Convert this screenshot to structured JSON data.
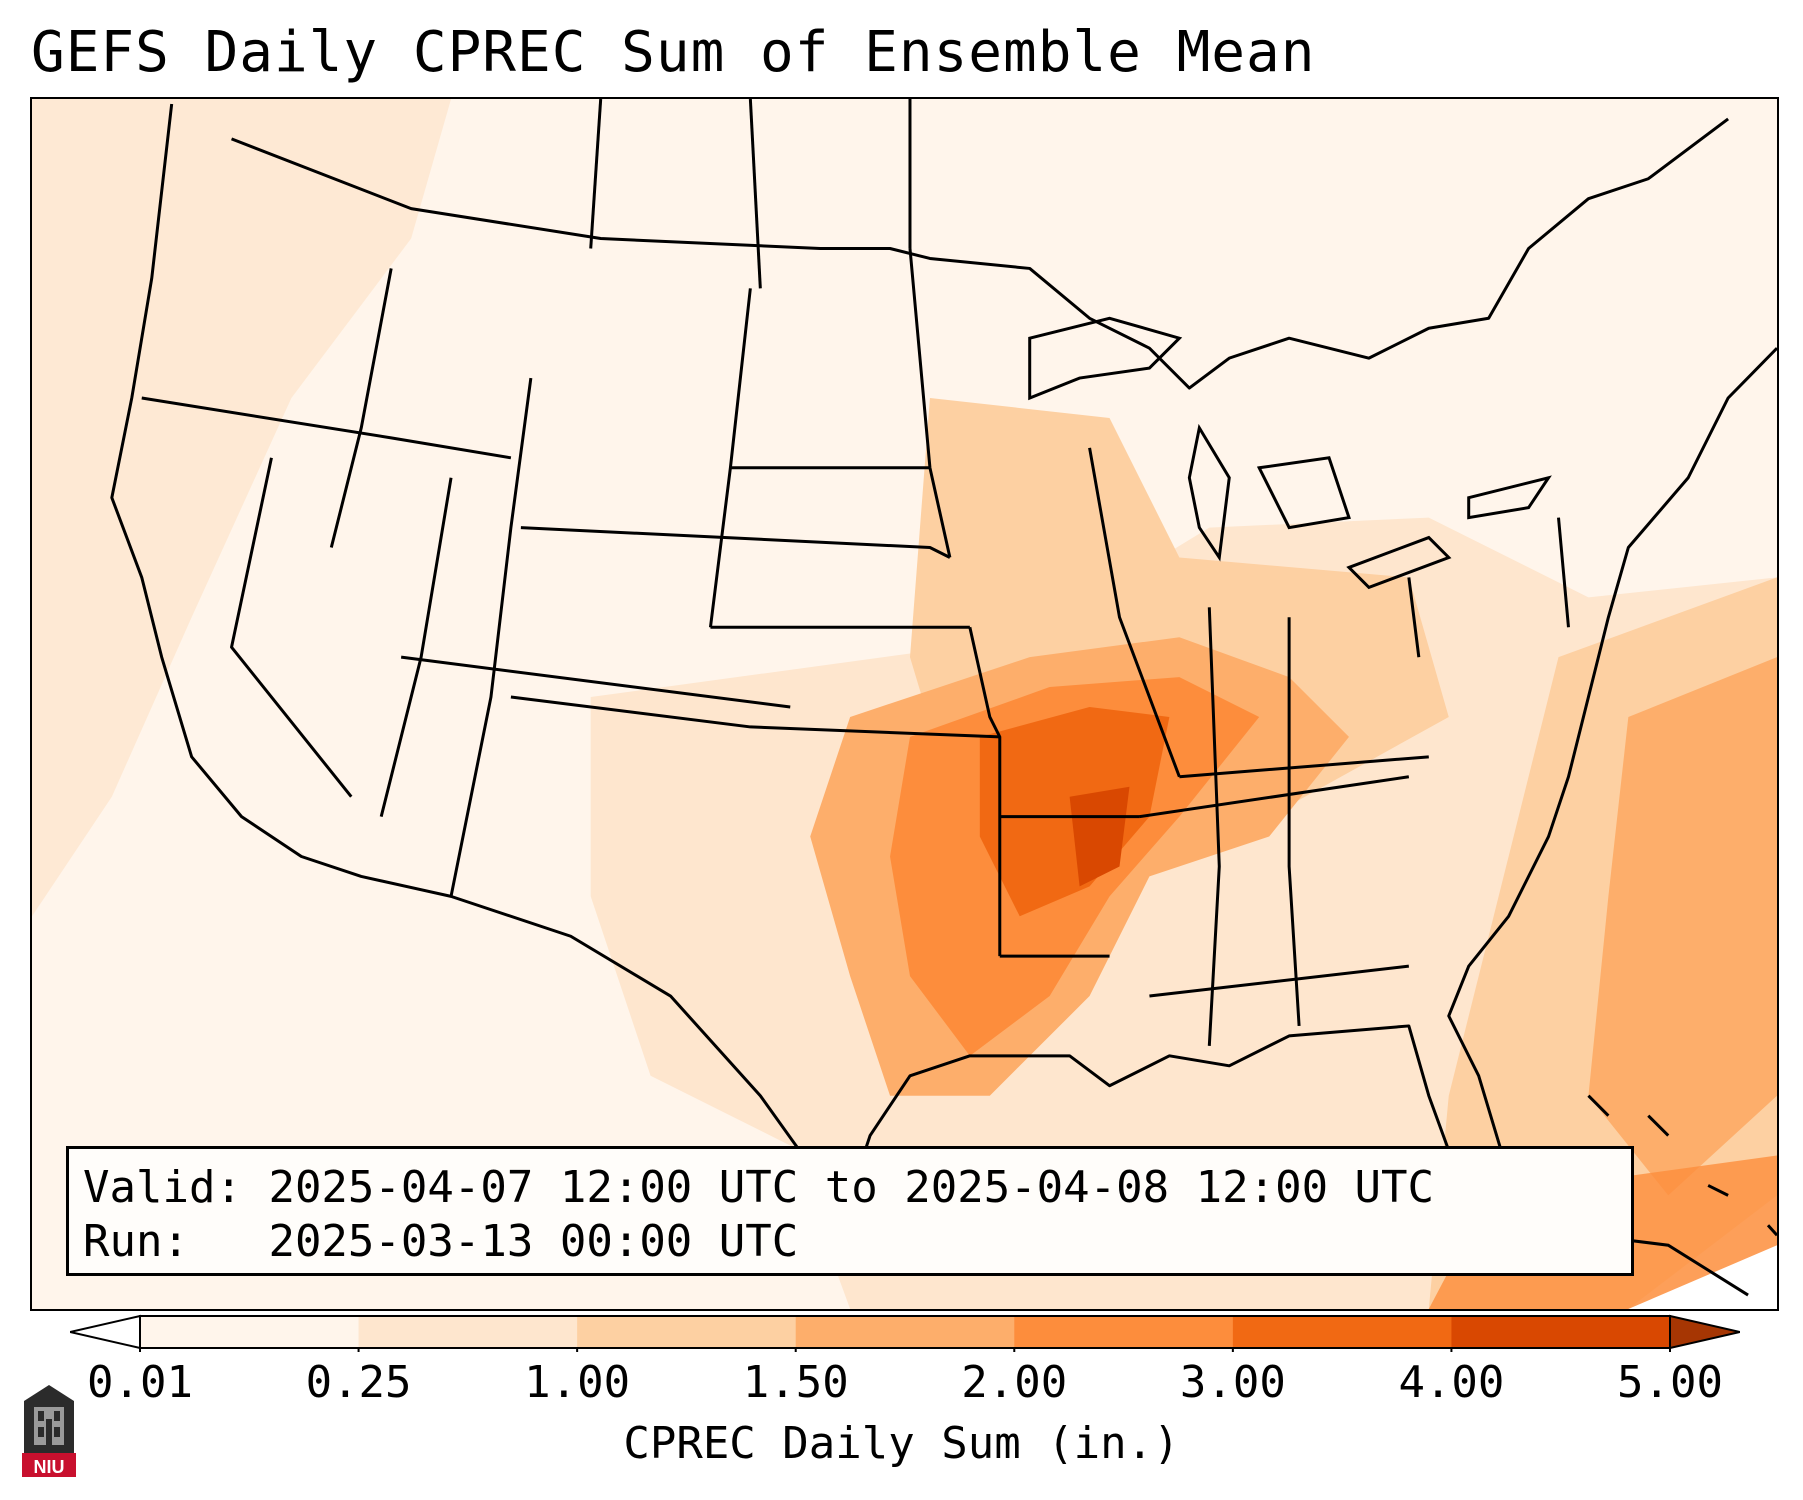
{
  "title": "GEFS Daily CPREC Sum of Ensemble Mean",
  "info": {
    "valid_label": "Valid:",
    "valid_value": "2025-04-07 12:00 UTC to 2025-04-08 12:00 UTC",
    "run_label": "Run:  ",
    "run_value": "2025-03-13 00:00 UTC"
  },
  "colorbar": {
    "label": "CPREC Daily Sum (in.)",
    "ticks": [
      "0.01",
      "0.25",
      "1.00",
      "1.50",
      "2.00",
      "3.00",
      "4.00",
      "5.00"
    ],
    "colors": [
      "#fff5eb",
      "#fee6ce",
      "#fdd0a2",
      "#fdae6b",
      "#fd8d3c",
      "#f16913",
      "#d94801",
      "#a63603"
    ],
    "under_color": "#ffffff",
    "over_color": "#a63603"
  },
  "logo": {
    "icon": "niu-logo-icon",
    "text": "NIU",
    "color": "#c8102e"
  }
}
